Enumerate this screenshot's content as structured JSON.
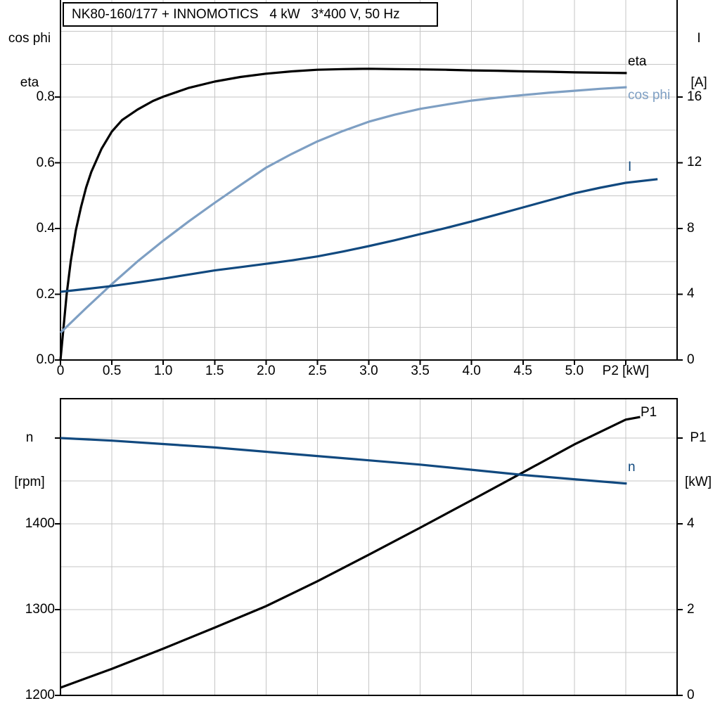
{
  "title": "NK80-160/177 + INNOMOTICS   4 kW   3*400 V, 50 Hz",
  "colors": {
    "black": "#000000",
    "light_blue": "#7e9fc3",
    "dark_blue": "#11497f",
    "grid": "#c6c6c6",
    "axis": "#000000"
  },
  "corner_labels": {
    "top_left": [
      "cos phi",
      "eta"
    ],
    "top_right": [
      "I",
      "[A]"
    ],
    "bottom_left": [
      "n",
      "[rpm]"
    ],
    "bottom_right": [
      "P1",
      "[kW]"
    ]
  },
  "chart_data": {
    "type": "line",
    "title": "NK80-160/177 + INNOMOTICS   4 kW   3*400 V, 50 Hz",
    "legend_position": "curve-end-labels",
    "grid": "on",
    "panels": [
      {
        "id": "efficiency-cosphi-current-panel",
        "x_axis": {
          "label": "P2 [kW]",
          "range": [
            0,
            6
          ],
          "grid_values": [
            0.5,
            1.0,
            1.5,
            2.0,
            2.5,
            3.0,
            3.5,
            4.0,
            4.5,
            5.0,
            5.5
          ],
          "ticks": [
            {
              "v": 0.0,
              "label": "0"
            },
            {
              "v": 0.5,
              "label": "0.5"
            },
            {
              "v": 1.0,
              "label": "1.0"
            },
            {
              "v": 1.5,
              "label": "1.5"
            },
            {
              "v": 2.0,
              "label": "2.0"
            },
            {
              "v": 2.5,
              "label": "2.5"
            },
            {
              "v": 3.0,
              "label": "3.0"
            },
            {
              "v": 3.5,
              "label": "3.5"
            },
            {
              "v": 4.0,
              "label": "4.0"
            },
            {
              "v": 4.5,
              "label": "4.5"
            },
            {
              "v": 5.0,
              "label": "5.0"
            },
            {
              "v": 5.5,
              "label": "P2 [kW]"
            }
          ]
        },
        "y_left": {
          "label": "cos phi / eta",
          "range": [
            0,
            1.0952
          ],
          "grid_values": [
            0.1,
            0.2,
            0.3,
            0.4,
            0.5,
            0.6,
            0.7,
            0.8,
            0.9,
            1.0
          ],
          "ticks": [
            {
              "v": 0.0,
              "label": "0.0"
            },
            {
              "v": 0.2,
              "label": "0.2"
            },
            {
              "v": 0.4,
              "label": "0.4"
            },
            {
              "v": 0.6,
              "label": "0.6"
            },
            {
              "v": 0.8,
              "label": "0.8"
            }
          ]
        },
        "y_right": {
          "label": "I [A]",
          "range": [
            0,
            21.9
          ],
          "grid_values": [],
          "ticks": [
            {
              "v": 0,
              "label": "0"
            },
            {
              "v": 4,
              "label": "4"
            },
            {
              "v": 8,
              "label": "8"
            },
            {
              "v": 12,
              "label": "12"
            },
            {
              "v": 16,
              "label": "16"
            }
          ]
        },
        "series": [
          {
            "id": "eta",
            "label": "eta",
            "axis": "left",
            "color": "black",
            "points": [
              [
                0,
                0
              ],
              [
                0.03,
                0.1
              ],
              [
                0.06,
                0.2
              ],
              [
                0.1,
                0.3
              ],
              [
                0.15,
                0.395
              ],
              [
                0.2,
                0.465
              ],
              [
                0.25,
                0.525
              ],
              [
                0.3,
                0.572
              ],
              [
                0.4,
                0.643
              ],
              [
                0.5,
                0.695
              ],
              [
                0.6,
                0.73
              ],
              [
                0.75,
                0.762
              ],
              [
                0.9,
                0.788
              ],
              [
                1.0,
                0.801
              ],
              [
                1.25,
                0.828
              ],
              [
                1.5,
                0.847
              ],
              [
                1.75,
                0.861
              ],
              [
                2.0,
                0.871
              ],
              [
                2.25,
                0.878
              ],
              [
                2.5,
                0.883
              ],
              [
                2.75,
                0.885
              ],
              [
                3.0,
                0.886
              ],
              [
                3.25,
                0.885
              ],
              [
                3.5,
                0.884
              ],
              [
                3.75,
                0.883
              ],
              [
                4.0,
                0.881
              ],
              [
                4.25,
                0.88
              ],
              [
                4.5,
                0.878
              ],
              [
                4.75,
                0.877
              ],
              [
                5.0,
                0.875
              ],
              [
                5.25,
                0.874
              ],
              [
                5.51,
                0.873
              ]
            ]
          },
          {
            "id": "cos_phi",
            "label": "cos phi",
            "axis": "left",
            "color": "light_blue",
            "points": [
              [
                0,
                0.083
              ],
              [
                0.25,
                0.158
              ],
              [
                0.5,
                0.231
              ],
              [
                0.75,
                0.3
              ],
              [
                1.0,
                0.363
              ],
              [
                1.25,
                0.422
              ],
              [
                1.5,
                0.478
              ],
              [
                1.75,
                0.532
              ],
              [
                2.0,
                0.585
              ],
              [
                2.25,
                0.627
              ],
              [
                2.5,
                0.665
              ],
              [
                2.75,
                0.697
              ],
              [
                3.0,
                0.725
              ],
              [
                3.25,
                0.746
              ],
              [
                3.5,
                0.764
              ],
              [
                3.75,
                0.777
              ],
              [
                4.0,
                0.789
              ],
              [
                4.25,
                0.798
              ],
              [
                4.5,
                0.806
              ],
              [
                4.75,
                0.813
              ],
              [
                5.0,
                0.819
              ],
              [
                5.25,
                0.825
              ],
              [
                5.51,
                0.83
              ]
            ]
          },
          {
            "id": "current",
            "label": "I",
            "axis": "right",
            "color": "dark_blue",
            "points": [
              [
                0,
                4.15
              ],
              [
                0.25,
                4.32
              ],
              [
                0.5,
                4.5
              ],
              [
                0.75,
                4.72
              ],
              [
                1.0,
                4.95
              ],
              [
                1.25,
                5.2
              ],
              [
                1.5,
                5.45
              ],
              [
                1.75,
                5.65
              ],
              [
                2.0,
                5.85
              ],
              [
                2.25,
                6.06
              ],
              [
                2.5,
                6.3
              ],
              [
                2.75,
                6.6
              ],
              [
                3.0,
                6.93
              ],
              [
                3.25,
                7.28
              ],
              [
                3.5,
                7.66
              ],
              [
                3.75,
                8.03
              ],
              [
                4.0,
                8.43
              ],
              [
                4.25,
                8.85
              ],
              [
                4.5,
                9.28
              ],
              [
                4.75,
                9.71
              ],
              [
                5.0,
                10.14
              ],
              [
                5.25,
                10.48
              ],
              [
                5.5,
                10.78
              ],
              [
                5.81,
                11.0
              ]
            ]
          }
        ]
      },
      {
        "id": "speed-power-panel",
        "x_axis": {
          "label": "",
          "range": [
            0,
            6
          ],
          "grid_values": [
            0.5,
            1.0,
            1.5,
            2.0,
            2.5,
            3.0,
            3.5,
            4.0,
            4.5,
            5.0,
            5.5
          ],
          "ticks": []
        },
        "y_left": {
          "label": "n [rpm]",
          "range": [
            1200,
            1545.9
          ],
          "grid_values": [],
          "ticks": [
            {
              "v": 1200,
              "label": "1200"
            },
            {
              "v": 1300,
              "label": "1300"
            },
            {
              "v": 1400,
              "label": "1400"
            },
            {
              "v": 1500,
              "label": ""
            }
          ]
        },
        "y_right": {
          "label": "P1 [kW]",
          "range": [
            0,
            6.918
          ],
          "grid_values": [
            1,
            2,
            3,
            4,
            5,
            6
          ],
          "ticks": [
            {
              "v": 0,
              "label": "0"
            },
            {
              "v": 2,
              "label": "2"
            },
            {
              "v": 4,
              "label": "4"
            },
            {
              "v": 6,
              "label": ""
            }
          ]
        },
        "series": [
          {
            "id": "p1",
            "label": "P1",
            "axis": "right",
            "color": "black",
            "points": [
              [
                0,
                0.18
              ],
              [
                0.5,
                0.62
              ],
              [
                1.0,
                1.09
              ],
              [
                1.5,
                1.58
              ],
              [
                2.0,
                2.08
              ],
              [
                2.5,
                2.66
              ],
              [
                3.0,
                3.28
              ],
              [
                3.5,
                3.91
              ],
              [
                4.0,
                4.55
              ],
              [
                4.5,
                5.2
              ],
              [
                5.0,
                5.85
              ],
              [
                5.5,
                6.43
              ],
              [
                5.64,
                6.49
              ]
            ]
          },
          {
            "id": "n",
            "label": "n",
            "axis": "left",
            "color": "dark_blue",
            "points": [
              [
                0,
                1500
              ],
              [
                0.5,
                1497
              ],
              [
                1.0,
                1493
              ],
              [
                1.5,
                1489
              ],
              [
                2.0,
                1484
              ],
              [
                2.5,
                1479
              ],
              [
                3.0,
                1474
              ],
              [
                3.5,
                1469
              ],
              [
                4.0,
                1463
              ],
              [
                4.5,
                1457
              ],
              [
                5.0,
                1452
              ],
              [
                5.51,
                1447
              ]
            ]
          }
        ]
      }
    ]
  }
}
